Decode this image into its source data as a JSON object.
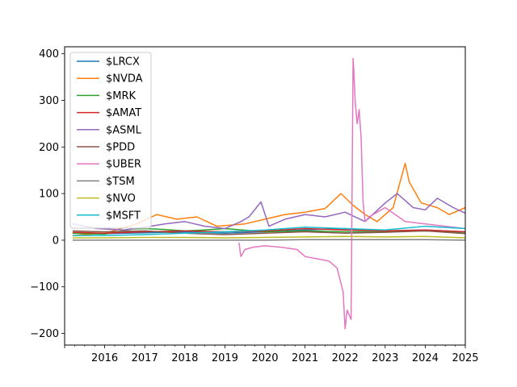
{
  "chart_data": {
    "type": "line",
    "title": "",
    "xlabel": "",
    "ylabel": "",
    "xlim": [
      2015.0,
      2025.0
    ],
    "ylim": [
      -225,
      415
    ],
    "x_ticks": [
      2016,
      2017,
      2018,
      2019,
      2020,
      2021,
      2022,
      2023,
      2024,
      2025
    ],
    "x_tick_labels": [
      "2016",
      "2017",
      "2018",
      "2019",
      "2020",
      "2021",
      "2022",
      "2023",
      "2024",
      "2025"
    ],
    "y_ticks": [
      -200,
      -100,
      0,
      100,
      200,
      300,
      400
    ],
    "y_tick_labels": [
      "−200",
      "−100",
      "0",
      "100",
      "200",
      "300",
      "400"
    ],
    "grid": false,
    "legend_position": "top-left",
    "series": [
      {
        "name": "$LRCX",
        "color": "#1f77b4",
        "x": [
          2015.2,
          2016.0,
          2017.0,
          2018.0,
          2019.0,
          2020.0,
          2021.0,
          2022.0,
          2023.0,
          2024.0,
          2025.0
        ],
        "y": [
          15,
          14,
          16,
          18,
          15,
          18,
          22,
          25,
          20,
          22,
          18
        ]
      },
      {
        "name": "$NVDA",
        "color": "#ff7f0e",
        "x": [
          2015.2,
          2016.0,
          2016.8,
          2017.3,
          2017.8,
          2018.3,
          2018.8,
          2019.5,
          2020.0,
          2020.5,
          2021.0,
          2021.5,
          2021.9,
          2022.2,
          2022.5,
          2022.8,
          2023.2,
          2023.5,
          2023.6,
          2023.9,
          2024.3,
          2024.6,
          2025.0
        ],
        "y": [
          10,
          15,
          35,
          55,
          45,
          50,
          30,
          35,
          45,
          55,
          60,
          68,
          100,
          75,
          55,
          40,
          70,
          165,
          125,
          80,
          70,
          55,
          70
        ]
      },
      {
        "name": "$MRK",
        "color": "#2ca02c",
        "x": [
          2015.2,
          2016.0,
          2016.7,
          2017.0,
          2017.5,
          2018.0,
          2018.5,
          2019.0,
          2020.0,
          2021.0,
          2022.0,
          2023.0,
          2024.0,
          2025.0
        ],
        "y": [
          15,
          13,
          24,
          25,
          23,
          20,
          22,
          25,
          18,
          20,
          18,
          18,
          20,
          17
        ]
      },
      {
        "name": "$AMAT",
        "color": "#d62728",
        "x": [
          2015.2,
          2016.0,
          2017.0,
          2018.0,
          2019.0,
          2020.0,
          2021.0,
          2022.0,
          2023.0,
          2024.0,
          2025.0
        ],
        "y": [
          17,
          15,
          18,
          20,
          18,
          20,
          25,
          22,
          20,
          22,
          18
        ]
      },
      {
        "name": "$ASML",
        "color": "#9467bd",
        "x": [
          2015.2,
          2015.8,
          2016.5,
          2017.0,
          2017.5,
          2018.0,
          2018.5,
          2019.0,
          2019.4,
          2019.6,
          2019.9,
          2020.1,
          2020.5,
          2021.0,
          2021.5,
          2022.0,
          2022.5,
          2023.0,
          2023.3,
          2023.7,
          2024.0,
          2024.3,
          2024.7,
          2025.0
        ],
        "y": [
          35,
          25,
          22,
          28,
          35,
          40,
          30,
          25,
          40,
          50,
          82,
          30,
          45,
          55,
          50,
          60,
          40,
          80,
          100,
          70,
          65,
          90,
          70,
          58
        ]
      },
      {
        "name": "$PDD",
        "color": "#8c564b",
        "x": [
          2015.2,
          2016.0,
          2017.0,
          2018.0,
          2019.0,
          2020.0,
          2021.0,
          2022.0,
          2023.0,
          2024.0,
          2025.0
        ],
        "y": [
          20,
          18,
          20,
          15,
          12,
          15,
          18,
          15,
          17,
          20,
          14
        ]
      },
      {
        "name": "$UBER",
        "color": "#e377c2",
        "x": [
          2019.35,
          2019.4,
          2019.5,
          2019.7,
          2020.0,
          2020.4,
          2020.8,
          2021.0,
          2021.3,
          2021.6,
          2021.8,
          2021.95,
          2022.0,
          2022.05,
          2022.1,
          2022.15,
          2022.2,
          2022.22,
          2022.25,
          2022.3,
          2022.35,
          2022.4,
          2022.45,
          2022.5,
          2022.6,
          2022.8,
          2023.0,
          2023.5,
          2024.0,
          2024.5,
          2025.0
        ],
        "y": [
          -5,
          -35,
          -20,
          -15,
          -12,
          -15,
          -20,
          -35,
          -40,
          -45,
          -60,
          -110,
          -190,
          -150,
          -160,
          -170,
          390,
          360,
          300,
          250,
          280,
          220,
          80,
          40,
          50,
          60,
          70,
          40,
          35,
          30,
          25
        ]
      },
      {
        "name": "$TSM",
        "color": "#7f7f7f",
        "x": [
          2015.2,
          2016.0,
          2017.0,
          2018.0,
          2019.0,
          2020.0,
          2021.0,
          2022.0,
          2023.0,
          2024.0,
          2025.0
        ],
        "y": [
          0,
          0,
          0,
          0,
          0,
          0,
          1,
          1,
          1,
          1,
          0
        ]
      },
      {
        "name": "$NVO",
        "color": "#bcbd22",
        "x": [
          2015.2,
          2016.0,
          2017.0,
          2018.0,
          2019.0,
          2020.0,
          2021.0,
          2022.0,
          2023.0,
          2024.0,
          2025.0
        ],
        "y": [
          5,
          5,
          6,
          6,
          5,
          6,
          7,
          8,
          7,
          8,
          5
        ]
      },
      {
        "name": "$MSFT",
        "color": "#17becf",
        "x": [
          2015.2,
          2016.0,
          2017.0,
          2018.0,
          2019.0,
          2020.0,
          2021.0,
          2022.0,
          2023.0,
          2024.0,
          2025.0
        ],
        "y": [
          10,
          10,
          12,
          15,
          18,
          22,
          28,
          25,
          22,
          30,
          25
        ]
      }
    ]
  }
}
